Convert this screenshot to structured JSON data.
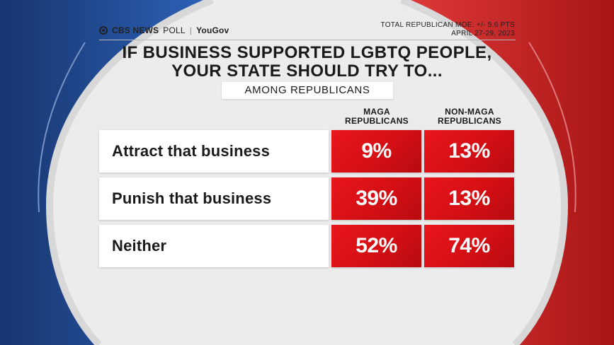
{
  "header": {
    "brand_main": "CBS NEWS",
    "brand_poll": "POLL",
    "brand_partner": "YouGov",
    "moe": "TOTAL REPUBLICAN MOE: +/- 5.6 PTS",
    "dates": "APRIL 27-29, 2023"
  },
  "colors": {
    "cell_red": "#d30f14",
    "ring_blue": "#1f4fa0",
    "ring_red": "#d02828",
    "background": "#ececec"
  },
  "chart_data": {
    "type": "table",
    "title_line1": "IF BUSINESS SUPPORTED LGBTQ PEOPLE,",
    "title_line2": "YOUR STATE SHOULD TRY TO...",
    "subtitle": "AMONG REPUBLICANS",
    "columns": [
      {
        "line1": "MAGA",
        "line2": "REPUBLICANS"
      },
      {
        "line1": "NON-MAGA",
        "line2": "REPUBLICANS"
      }
    ],
    "rows": [
      {
        "label": "Attract that business",
        "values": [
          "9%",
          "13%"
        ]
      },
      {
        "label": "Punish that business",
        "values": [
          "39%",
          "13%"
        ]
      },
      {
        "label": "Neither",
        "values": [
          "52%",
          "74%"
        ]
      }
    ]
  }
}
